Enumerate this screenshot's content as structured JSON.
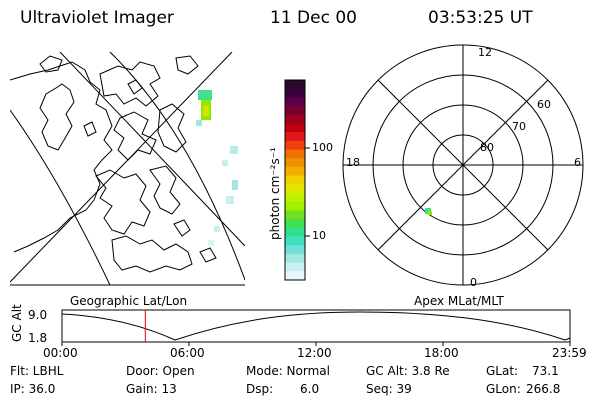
{
  "header": {
    "title": "Ultraviolet Imager",
    "date": "11 Dec 00",
    "time": "03:53:25 UT"
  },
  "colorbar": {
    "unit_label": "photon cm⁻²s⁻¹",
    "tick_100": "100",
    "tick_10": "10",
    "colors": [
      "#2a0a2a",
      "#3a003a",
      "#5a0048",
      "#7a0030",
      "#a00020",
      "#c00010",
      "#e01818",
      "#f04010",
      "#f07000",
      "#f09000",
      "#f0b000",
      "#f0d000",
      "#e0e800",
      "#c0f000",
      "#a0f000",
      "#70e020",
      "#40e050",
      "#30e090",
      "#40e0c0",
      "#70e0d8",
      "#a0e8e0",
      "#c8f0f0",
      "#e8f8f8"
    ]
  },
  "geo_map": {
    "label": "Geographic Lat/Lon"
  },
  "polar_plot": {
    "label": "Apex MLat/MLT",
    "mlt_top": "12",
    "mlt_left": "18",
    "mlt_right": "6",
    "mlt_bottom": "0",
    "lat_60": "60",
    "lat_70": "70",
    "lat_80": "80"
  },
  "orbit": {
    "ylabel": "GC Alt",
    "y_top": "9.0",
    "y_bottom": "1.8",
    "x_ticks": [
      "00:00",
      "06:00",
      "12:00",
      "18:00",
      "23:59"
    ],
    "current_time_fraction": 0.164
  },
  "status": {
    "flt": "Flt: LBHL",
    "ip": "IP: 36.0",
    "door": "Door: Open",
    "gain": "Gain: 13",
    "mode": "Mode: Normal",
    "dsp": "Dsp:",
    "dsp_val": "6.0",
    "gc_alt": "GC Alt: 3.8 Re",
    "seq": "Seq: 39",
    "glat": "GLat:",
    "glat_val": "73.1",
    "glon": "GLon:",
    "glon_val": "266.8"
  }
}
